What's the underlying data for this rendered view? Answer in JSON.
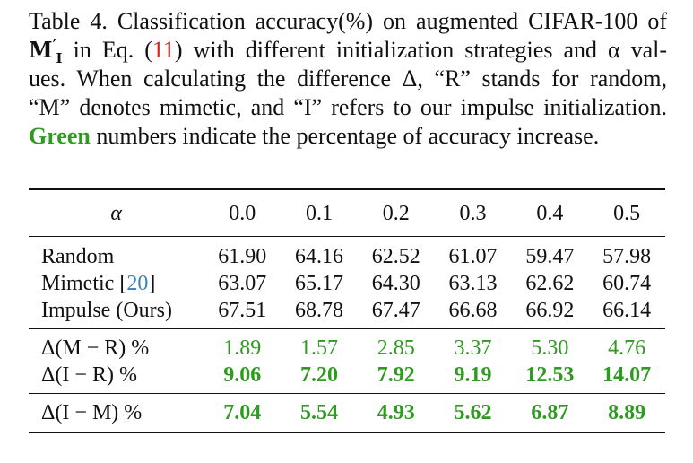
{
  "caption": {
    "table_label": "Table 4.",
    "line1": "Classification accuracy(%) on augmented CIFAR-100 of",
    "model_symbol": "M",
    "model_prime": "′",
    "model_sub": "I",
    "line2_in": "in Eq. (",
    "eq_ref": "11",
    "line2_rest": ") with different initialization strategies and α val-",
    "line3": "ues. When calculating the difference Δ, “R” stands for random,",
    "line4_a": "“M” denotes mimetic, and “I” refers to our impulse initialization.",
    "green_word": "Green",
    "line5_rest": "numbers indicate the percentage of accuracy increase."
  },
  "table": {
    "header_label": "α",
    "alphas": [
      "0.0",
      "0.1",
      "0.2",
      "0.3",
      "0.4",
      "0.5"
    ],
    "rows": [
      {
        "label": "Random",
        "cite": "",
        "values": [
          "61.90",
          "64.16",
          "62.52",
          "61.07",
          "59.47",
          "57.98"
        ]
      },
      {
        "label": "Mimetic [",
        "cite": "20",
        "label_end": "]",
        "values": [
          "63.07",
          "65.17",
          "64.30",
          "63.13",
          "62.62",
          "60.74"
        ]
      },
      {
        "label": "Impulse (Ours)",
        "cite": "",
        "values": [
          "67.51",
          "68.78",
          "67.47",
          "66.68",
          "66.92",
          "66.14"
        ]
      }
    ],
    "delta_rows": [
      {
        "label": "Δ(M − R) %",
        "values": [
          "1.89",
          "1.57",
          "2.85",
          "3.37",
          "5.30",
          "4.76"
        ]
      },
      {
        "label": "Δ(I − R) %",
        "values": [
          "9.06",
          "7.20",
          "7.92",
          "9.19",
          "12.53",
          "14.07"
        ]
      }
    ],
    "final_row": {
      "label": "Δ(I − M) %",
      "values": [
        "7.04",
        "5.54",
        "4.93",
        "5.62",
        "6.87",
        "8.89"
      ]
    }
  },
  "colors": {
    "green": "#2e9a1f",
    "red_ref": "#e0201b",
    "blue_cite": "#3a7fc1"
  }
}
